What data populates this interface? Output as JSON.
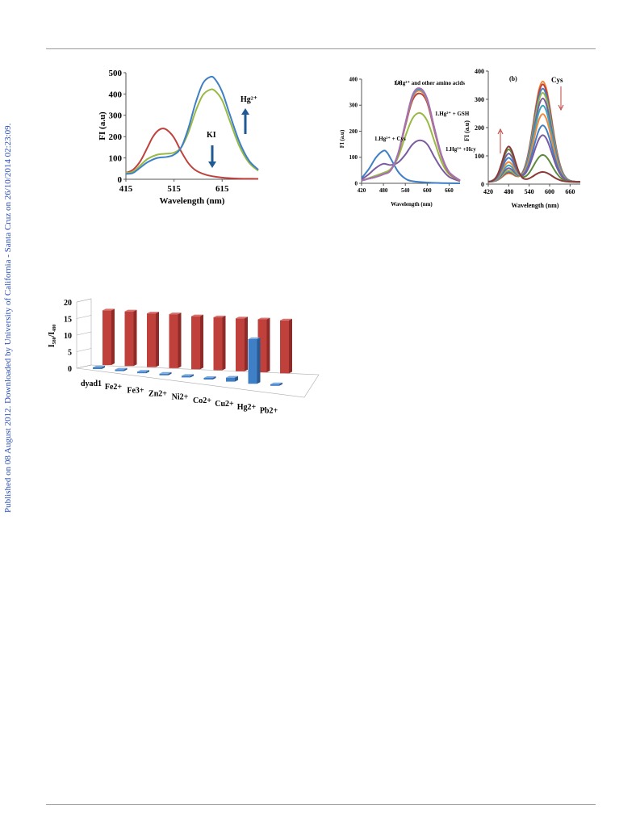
{
  "watermark": "Published on 08 August 2012. Downloaded by University of California - Santa Cruz on 26/10/2014 02:23:09.",
  "colors": {
    "blue": "#3f7fc5",
    "red": "#c0403c",
    "green": "#99b946",
    "purple": "#7a5aa0",
    "orange": "#f08a3a",
    "teal": "#3aa6b9"
  },
  "chart_data": [
    {
      "type": "line",
      "panel": "fig1",
      "xlabel": "Wavelength (nm)",
      "ylabel": "FI (a.u)",
      "xlim": [
        415,
        690
      ],
      "ylim": [
        0,
        500
      ],
      "xticks": [
        "415",
        "515",
        "615"
      ],
      "yticks": [
        "0",
        "100",
        "200",
        "300",
        "400",
        "500"
      ],
      "annotations": [
        "Hg²⁺",
        "KI"
      ],
      "series": [
        {
          "color": "#c0403c",
          "x": [
            415,
            430,
            445,
            460,
            470,
            480,
            490,
            500,
            515,
            530,
            545,
            560,
            580,
            600,
            620,
            650,
            690
          ],
          "y": [
            30,
            45,
            85,
            150,
            195,
            225,
            238,
            232,
            195,
            130,
            75,
            42,
            22,
            12,
            7,
            3,
            2
          ]
        },
        {
          "color": "#99b946",
          "x": [
            415,
            430,
            445,
            460,
            480,
            500,
            515,
            530,
            545,
            560,
            575,
            590,
            600,
            615,
            630,
            650,
            670,
            690
          ],
          "y": [
            30,
            35,
            65,
            95,
            115,
            120,
            125,
            150,
            220,
            320,
            395,
            420,
            415,
            370,
            280,
            160,
            80,
            40
          ]
        },
        {
          "color": "#3f7fc5",
          "x": [
            415,
            430,
            445,
            460,
            480,
            500,
            515,
            530,
            545,
            560,
            575,
            590,
            600,
            615,
            630,
            650,
            670,
            690
          ],
          "y": [
            25,
            30,
            55,
            80,
            100,
            105,
            115,
            150,
            240,
            360,
            450,
            480,
            470,
            410,
            310,
            180,
            90,
            45
          ]
        }
      ]
    },
    {
      "type": "line",
      "panel": "fig2a",
      "label": "(a)",
      "xlabel": "Wavelength (nm)",
      "ylabel": "FI (a.u)",
      "xlim": [
        420,
        690
      ],
      "ylim": [
        0,
        400
      ],
      "xticks": [
        "420",
        "480",
        "540",
        "600",
        "660"
      ],
      "yticks": [
        "0",
        "100",
        "200",
        "300",
        "400"
      ],
      "annotations": [
        "1.Hg²⁺ + Cys",
        "1.Hg²⁺ and other amino acids",
        "1.Hg²⁺ + GSH",
        "1.Hg²⁺ +Hcy"
      ],
      "series": [
        {
          "color": "#3f7fc5",
          "x": [
            420,
            440,
            460,
            480,
            490,
            500,
            520,
            540,
            560,
            600,
            640,
            690
          ],
          "y": [
            20,
            55,
            100,
            125,
            118,
            95,
            45,
            18,
            8,
            3,
            1,
            0
          ]
        },
        {
          "color": "#7a5aa0",
          "x": [
            420,
            440,
            460,
            480,
            500,
            520,
            540,
            560,
            580,
            600,
            620,
            640,
            660,
            690
          ],
          "y": [
            15,
            35,
            60,
            75,
            70,
            80,
            110,
            150,
            165,
            150,
            100,
            55,
            25,
            8
          ]
        },
        {
          "color": "#99b946",
          "x": [
            420,
            440,
            460,
            480,
            500,
            520,
            540,
            560,
            580,
            600,
            620,
            640,
            660,
            690
          ],
          "y": [
            10,
            20,
            30,
            40,
            55,
            100,
            180,
            250,
            270,
            240,
            160,
            80,
            35,
            10
          ]
        },
        {
          "color": "#c0403c",
          "x": [
            420,
            440,
            460,
            480,
            500,
            520,
            540,
            560,
            580,
            600,
            620,
            640,
            660,
            690
          ],
          "y": [
            10,
            18,
            25,
            35,
            50,
            110,
            220,
            320,
            345,
            310,
            200,
            100,
            40,
            10
          ]
        },
        {
          "color": "#f08a3a",
          "x": [
            420,
            440,
            460,
            480,
            500,
            520,
            540,
            560,
            580,
            600,
            620,
            640,
            660,
            690
          ],
          "y": [
            10,
            18,
            25,
            35,
            50,
            112,
            225,
            330,
            355,
            318,
            205,
            102,
            42,
            11
          ]
        },
        {
          "color": "#3aa6b9",
          "x": [
            420,
            440,
            460,
            480,
            500,
            520,
            540,
            560,
            580,
            600,
            620,
            640,
            660,
            690
          ],
          "y": [
            10,
            18,
            25,
            35,
            50,
            113,
            228,
            335,
            360,
            322,
            208,
            104,
            43,
            11
          ]
        },
        {
          "color": "#a86fb3",
          "x": [
            420,
            440,
            460,
            480,
            500,
            520,
            540,
            560,
            580,
            600,
            620,
            640,
            660,
            690
          ],
          "y": [
            10,
            18,
            25,
            35,
            50,
            114,
            230,
            340,
            365,
            325,
            210,
            105,
            44,
            11
          ]
        }
      ]
    },
    {
      "type": "line",
      "panel": "fig2b",
      "label": "(b)",
      "xlabel": "Wavelength (nm)",
      "ylabel": "FI (a.u)",
      "xlim": [
        420,
        690
      ],
      "ylim": [
        0,
        400
      ],
      "xticks": [
        "420",
        "480",
        "540",
        "600",
        "660"
      ],
      "yticks": [
        "0",
        "100",
        "200",
        "300",
        "400"
      ],
      "annotations": [
        "Cys"
      ],
      "series": [
        {
          "color": "#f08a3a",
          "peak580": 355,
          "peak480": 30
        },
        {
          "color": "#c0403c",
          "peak580": 345,
          "peak480": 33
        },
        {
          "color": "#3f7fc5",
          "peak580": 330,
          "peak480": 36
        },
        {
          "color": "#99b946",
          "peak580": 315,
          "peak480": 40
        },
        {
          "color": "#7a5aa0",
          "peak580": 295,
          "peak480": 48
        },
        {
          "color": "#3aa6b9",
          "peak580": 270,
          "peak480": 58
        },
        {
          "color": "#f08a3a",
          "peak580": 240,
          "peak480": 70
        },
        {
          "color": "#3f7fc5",
          "peak580": 200,
          "peak480": 85
        },
        {
          "color": "#7a5aa0",
          "peak580": 165,
          "peak480": 100
        },
        {
          "color": "#5b8a3a",
          "peak580": 95,
          "peak480": 115
        },
        {
          "color": "#8b3a3a",
          "peak580": 35,
          "peak480": 125
        }
      ]
    },
    {
      "type": "bar",
      "panel": "fig3",
      "ylabel": "I₅₈₀/I₄₈₀",
      "ylim": [
        0,
        20
      ],
      "yticks": [
        "0",
        "5",
        "10",
        "15",
        "20"
      ],
      "categories": [
        "dyad1",
        "Fe2+",
        "Fe3+",
        "Zn2+",
        "Ni2+",
        "Co2+",
        "Cu2+",
        "Hg2+",
        "Pb2+"
      ],
      "series": [
        {
          "color": "#3f7fc5",
          "values": [
            0.3,
            0.3,
            0.3,
            0.3,
            0.3,
            0.3,
            1.2,
            13.5,
            0.3
          ]
        },
        {
          "color": "#c0403c",
          "values": [
            16.5,
            16.5,
            16.2,
            16.3,
            16,
            16,
            16,
            16,
            16
          ]
        }
      ]
    }
  ]
}
